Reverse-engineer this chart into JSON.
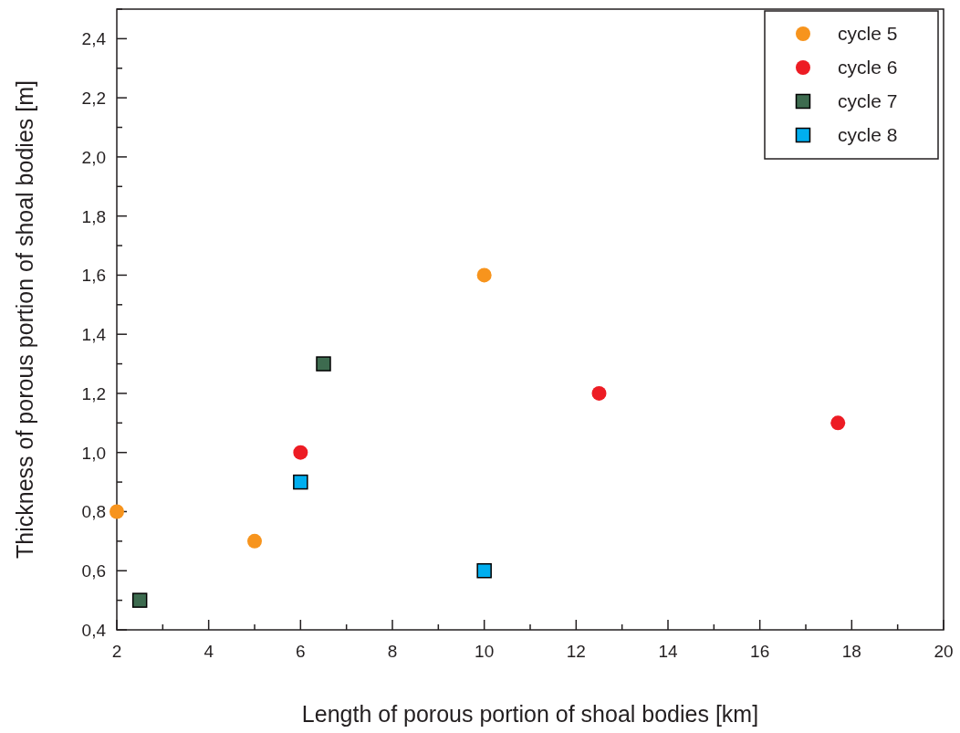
{
  "chart_data": {
    "type": "scatter",
    "xlabel": "Length of porous portion of shoal bodies    [km]",
    "ylabel": "Thickness of porous portion of shoal bodies    [m]",
    "xlim": [
      2,
      20
    ],
    "ylim": [
      0.4,
      2.5
    ],
    "xticks": [
      2,
      {
        "value": 3,
        "label": null
      },
      4,
      {
        "value": 5,
        "label": null
      },
      6,
      {
        "value": 7,
        "label": null
      },
      8,
      {
        "value": 9,
        "label": null
      },
      10,
      {
        "value": 11,
        "label": null
      },
      12,
      {
        "value": 13,
        "label": null
      },
      14,
      {
        "value": 15,
        "label": null
      },
      16,
      {
        "value": 17,
        "label": null
      },
      18,
      {
        "value": 19,
        "label": null
      },
      20
    ],
    "yticks": [
      {
        "value": 0.4,
        "label": "0,4"
      },
      {
        "value": 0.5,
        "label": null
      },
      {
        "value": 0.6,
        "label": "0,6"
      },
      {
        "value": 0.7,
        "label": null
      },
      {
        "value": 0.8,
        "label": "0,8"
      },
      {
        "value": 0.9,
        "label": null
      },
      {
        "value": 1.0,
        "label": "1,0"
      },
      {
        "value": 1.1,
        "label": null
      },
      {
        "value": 1.2,
        "label": "1,2"
      },
      {
        "value": 1.3,
        "label": null
      },
      {
        "value": 1.4,
        "label": "1,4"
      },
      {
        "value": 1.5,
        "label": null
      },
      {
        "value": 1.6,
        "label": "1,6"
      },
      {
        "value": 1.7,
        "label": null
      },
      {
        "value": 1.8,
        "label": "1,8"
      },
      {
        "value": 1.9,
        "label": null
      },
      {
        "value": 2.0,
        "label": "2,0"
      },
      {
        "value": 2.1,
        "label": null
      },
      {
        "value": 2.2,
        "label": "2,2"
      },
      {
        "value": 2.3,
        "label": null
      },
      {
        "value": 2.4,
        "label": "2,4"
      },
      {
        "value": 2.5,
        "label": null
      }
    ],
    "grid": false,
    "legend": "top right",
    "series": [
      {
        "name": "cycle 5",
        "color": "#f7941d",
        "marker": "circle",
        "x": [
          2,
          5,
          10
        ],
        "values": [
          0.8,
          0.7,
          1.6
        ]
      },
      {
        "name": "cycle 6",
        "color": "#ed1c24",
        "marker": "circle",
        "x": [
          6,
          12.5,
          17.7
        ],
        "values": [
          1.0,
          1.2,
          1.1
        ]
      },
      {
        "name": "cycle 7",
        "color": "#3d6b4f",
        "marker": "square",
        "x": [
          2.5,
          6.5
        ],
        "values": [
          0.5,
          1.3
        ]
      },
      {
        "name": "cycle 8",
        "color": "#00aeef",
        "marker": "square",
        "x": [
          6,
          10
        ],
        "values": [
          0.9,
          0.6
        ]
      }
    ]
  }
}
